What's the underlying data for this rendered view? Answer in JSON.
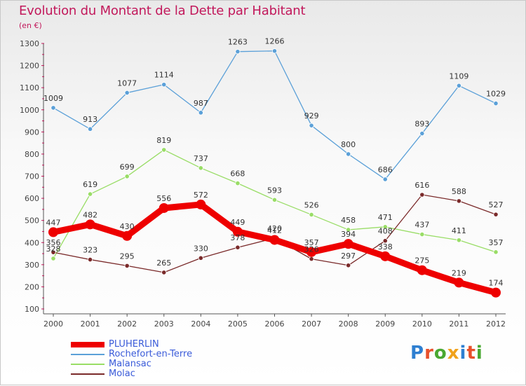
{
  "title": "Evolution du Montant de la Dette par Habitant",
  "subtitle": "(en €)",
  "logo": {
    "text": "Proxiti",
    "letter_colors": [
      "#2e7fd1",
      "#e8502b",
      "#4aa832",
      "#f0a21c",
      "#2e7fd1",
      "#e8502b",
      "#4aa832"
    ]
  },
  "chart_data": {
    "type": "line",
    "x": [
      "2000",
      "2001",
      "2002",
      "2003",
      "2004",
      "2005",
      "2006",
      "2007",
      "2008",
      "2009",
      "2010",
      "2011",
      "2012"
    ],
    "ylim": [
      100,
      1300
    ],
    "yticks": [
      100,
      200,
      300,
      400,
      500,
      600,
      700,
      800,
      900,
      1000,
      1100,
      1200,
      1300
    ],
    "grid": false,
    "legend_position": "bottom-left",
    "series": [
      {
        "name": "PLUHERLIN",
        "color": "#ee0000",
        "values": [
          447,
          482,
          430,
          556,
          572,
          449,
          412,
          357,
          394,
          338,
          275,
          219,
          174
        ]
      },
      {
        "name": "Rochefort-en-Terre",
        "color": "#5ba0d8",
        "values": [
          1009,
          913,
          1077,
          1114,
          987,
          1263,
          1266,
          929,
          800,
          686,
          893,
          1109,
          1029
        ]
      },
      {
        "name": "Malansac",
        "color": "#99dd66",
        "values": [
          328,
          619,
          699,
          819,
          737,
          668,
          593,
          526,
          458,
          471,
          437,
          411,
          357
        ]
      },
      {
        "name": "Molac",
        "color": "#7a2a2a",
        "values": [
          356,
          323,
          295,
          265,
          330,
          378,
          420,
          326,
          297,
          408,
          616,
          588,
          527
        ]
      }
    ]
  }
}
